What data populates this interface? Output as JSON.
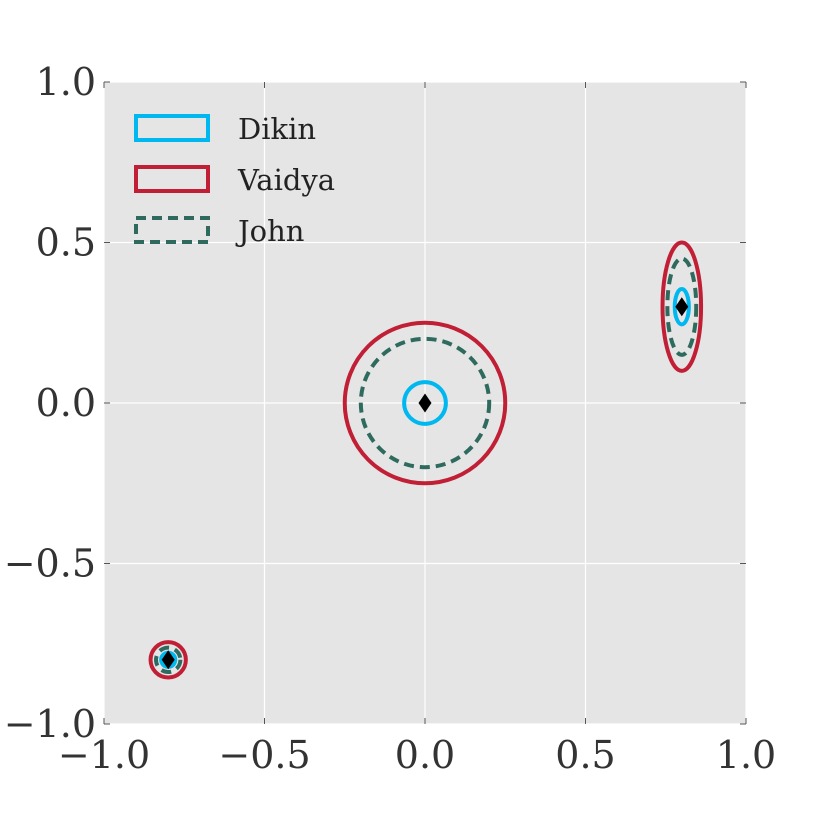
{
  "chart_data": {
    "type": "scatter",
    "title": "",
    "xlabel": "",
    "ylabel": "",
    "xlim": [
      -1.0,
      1.0
    ],
    "ylim": [
      -1.0,
      1.0
    ],
    "grid": true,
    "background": "#e5e5e5",
    "legend_position": "top-left",
    "x_ticks": [
      {
        "value": -1.0,
        "label": "−1.0"
      },
      {
        "value": -0.5,
        "label": "−0.5"
      },
      {
        "value": 0.0,
        "label": "0.0"
      },
      {
        "value": 0.5,
        "label": "0.5"
      },
      {
        "value": 1.0,
        "label": "1.0"
      }
    ],
    "y_ticks": [
      {
        "value": -1.0,
        "label": "−1.0"
      },
      {
        "value": -0.5,
        "label": "−0.5"
      },
      {
        "value": 0.0,
        "label": "0.0"
      },
      {
        "value": 0.5,
        "label": "0.5"
      },
      {
        "value": 1.0,
        "label": "1.0"
      }
    ],
    "series": [
      {
        "name": "Dikin",
        "color": "#00b8f0",
        "style": "solid",
        "ellipses": [
          {
            "cx": 0.0,
            "cy": 0.0,
            "rx": 0.065,
            "ry": 0.065
          },
          {
            "cx": 0.8,
            "cy": 0.3,
            "rx": 0.022,
            "ry": 0.055
          },
          {
            "cx": -0.8,
            "cy": -0.8,
            "rx": 0.022,
            "ry": 0.022
          }
        ]
      },
      {
        "name": "Vaidya",
        "color": "#c11f35",
        "style": "solid",
        "ellipses": [
          {
            "cx": 0.0,
            "cy": 0.0,
            "rx": 0.25,
            "ry": 0.25
          },
          {
            "cx": 0.8,
            "cy": 0.3,
            "rx": 0.06,
            "ry": 0.2
          },
          {
            "cx": -0.8,
            "cy": -0.8,
            "rx": 0.055,
            "ry": 0.055
          }
        ]
      },
      {
        "name": "John",
        "color": "#2e6b5e",
        "style": "dashed",
        "ellipses": [
          {
            "cx": 0.0,
            "cy": 0.0,
            "rx": 0.2,
            "ry": 0.2
          },
          {
            "cx": 0.8,
            "cy": 0.3,
            "rx": 0.045,
            "ry": 0.15
          },
          {
            "cx": -0.8,
            "cy": -0.8,
            "rx": 0.038,
            "ry": 0.038
          }
        ]
      }
    ],
    "centers": [
      {
        "x": 0.0,
        "y": 0.0
      },
      {
        "x": 0.8,
        "y": 0.3
      },
      {
        "x": -0.8,
        "y": -0.8
      }
    ],
    "center_marker": {
      "shape": "diamond",
      "color": "#000000"
    }
  }
}
